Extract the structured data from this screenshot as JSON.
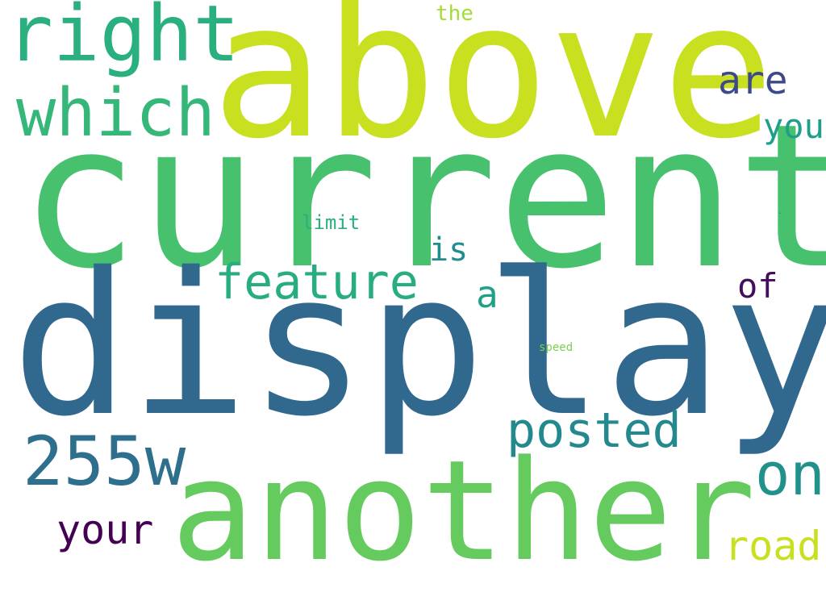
{
  "word_cloud": {
    "background": "#ffffff",
    "words": {
      "above": {
        "text": "above",
        "color": "#c8e020"
      },
      "current": {
        "text": "current",
        "color": "#48c16e"
      },
      "display": {
        "text": "display",
        "color": "#31688e"
      },
      "another": {
        "text": "another",
        "color": "#65cb5e"
      },
      "right": {
        "text": "right",
        "color": "#2ab07f"
      },
      "which": {
        "text": "which",
        "color": "#35b779"
      },
      "w255": {
        "text": "255w",
        "color": "#2e6f8e"
      },
      "feature": {
        "text": "feature",
        "color": "#27ad81"
      },
      "posted": {
        "text": "posted",
        "color": "#23898e"
      },
      "on": {
        "text": "on",
        "color": "#21918c"
      },
      "are": {
        "text": "are",
        "color": "#3e4989"
      },
      "you": {
        "text": "you",
        "color": "#1f9e89"
      },
      "your": {
        "text": "your",
        "color": "#440154"
      },
      "road": {
        "text": "road",
        "color": "#c8e020"
      },
      "is": {
        "text": "is",
        "color": "#218e8d"
      },
      "a": {
        "text": "a",
        "color": "#1fa187"
      },
      "of": {
        "text": "of",
        "color": "#450e5c"
      },
      "the": {
        "text": "the",
        "color": "#a5db36"
      },
      "limit": {
        "text": "limit",
        "color": "#2ab07f"
      },
      "speed": {
        "text": "speed",
        "color": "#7ad151"
      },
      "dot": {
        "text": ".",
        "color": "#25848e"
      }
    }
  }
}
